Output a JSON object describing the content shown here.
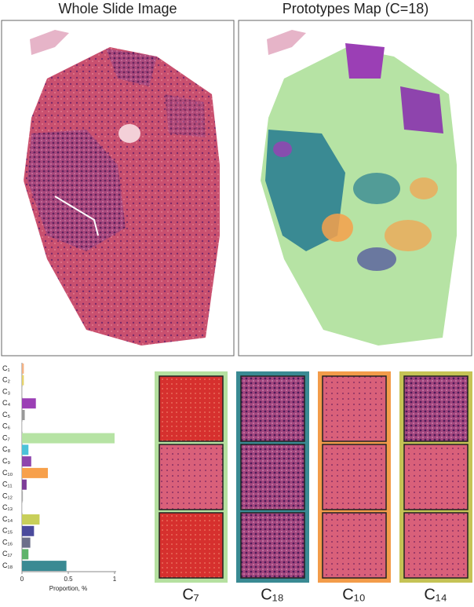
{
  "panels": {
    "left_title": "Whole Slide Image",
    "right_title": "Prototypes Map (C=18)",
    "patches": [
      "C₇",
      "C₁₈",
      "C₁₀",
      "C₁₄"
    ]
  },
  "chart_data": {
    "type": "hbar",
    "xlabel": "Proportion, %",
    "categories": [
      "C₁",
      "C₂",
      "C₃",
      "C₄",
      "C₅",
      "C₆",
      "C₇",
      "C₈",
      "C₉",
      "C₁₀",
      "C₁₁",
      "C₁₂",
      "C₁₃",
      "C₁₄",
      "C₁₅",
      "C₁₆",
      "C₁₇",
      "C₁₈"
    ],
    "values": [
      0.02,
      0.02,
      0.005,
      0.15,
      0.03,
      0.005,
      1.0,
      0.07,
      0.1,
      0.28,
      0.05,
      0.01,
      0.005,
      0.19,
      0.13,
      0.09,
      0.07,
      0.48
    ],
    "colors": [
      "#f4b183",
      "#e6d36a",
      "#bbbbbb",
      "#9b3fb5",
      "#999999",
      "#cccccc",
      "#b6e3a4",
      "#4cc3d9",
      "#8e44ad",
      "#f7a04b",
      "#7d3c98",
      "#aaaaaa",
      "#cccccc",
      "#c8cf5a",
      "#4a4a9c",
      "#6c6f8a",
      "#5fb36b",
      "#3a8a93"
    ],
    "xlim": [
      0,
      1
    ],
    "xticks": [
      0,
      0.5,
      1
    ]
  }
}
